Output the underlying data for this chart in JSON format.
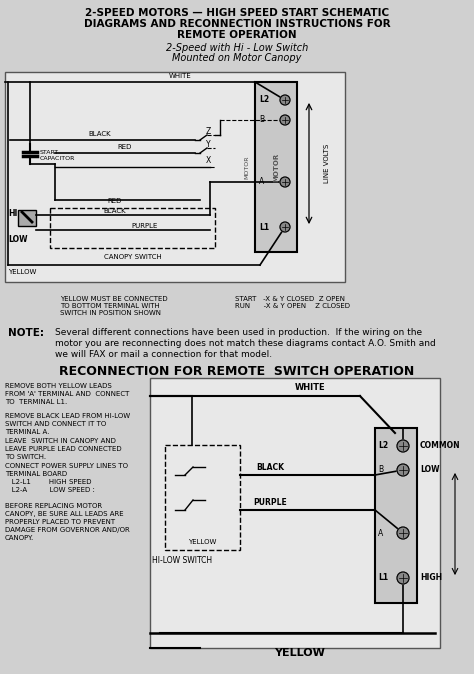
{
  "bg_color": "#d0d0d0",
  "title_line1": "2-SPEED MOTORS — HIGH SPEED START SCHEMATIC",
  "title_line2": "DIAGRAMS AND RECONNECTION INSTRUCTIONS FOR",
  "title_line3": "REMOTE OPERATION",
  "subtitle1": "2-Speed with Hi - Low Switch",
  "subtitle2": "Mounted on Motor Canopy",
  "note_label": "NOTE:",
  "note_text1": "Several different connections have been used in production.  If the wiring on the",
  "note_text2": "motor you are reconnecting does not match these diagrams contact A.O. Smith and",
  "note_text3": "we will FAX or mail a connection for that model.",
  "reconnect_title": "RECONNECTION FOR REMOTE  SWITCH OPERATION",
  "left_text1": "REMOVE BOTH YELLOW LEADS\nFROM 'A' TERMINAL AND  CONNECT\nTO  TERMINAL L1.",
  "left_text2": "REMOVE BLACK LEAD FROM HI-LOW\nSWITCH AND CONNECT IT TO\nTERMINAL A.",
  "left_text3": "LEAVE  SWITCH IN CANOPY AND\nLEAVE PURPLE LEAD CONNECTED\nTO SWITCH.",
  "left_text4": "CONNECT POWER SUPPLY LINES TO\nTERMINAL BOARD\n   L2-L1        HIGH SPEED\n   L2-A          LOW SPEED :",
  "left_text5": "BEFORE REPLACING MOTOR\nCANOPY, BE SURE ALL LEADS ARE\nPROPERLY PLACED TO PREVENT\nDAMAGE FROM GOVERNOR AND/OR\nCANOPY.",
  "yellow_note": "YELLOW MUST BE CONNECTED\nTO BOTTOM TERMINAL WITH\nSWITCH IN POSITION SHOWN",
  "start_run": "START   -X & Y CLOSED  Z OPEN\nRUN      -X & Y OPEN    Z CLOSED"
}
